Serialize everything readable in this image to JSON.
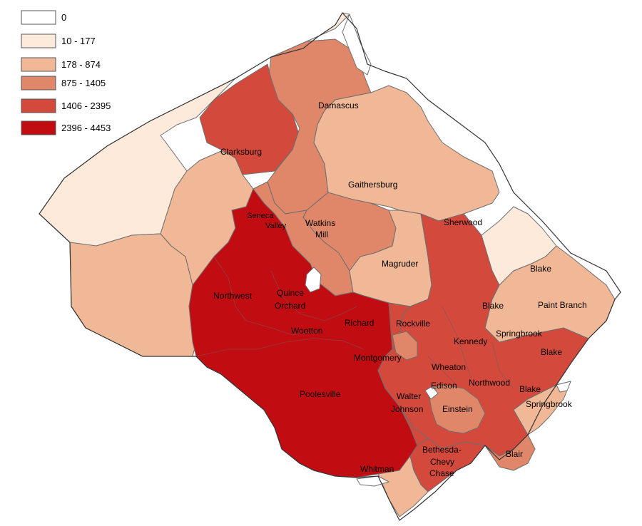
{
  "legend": {
    "classes": [
      {
        "label": "0",
        "color": "#ffffff"
      },
      {
        "label": "10 - 177",
        "color": "#fdeadb"
      },
      {
        "label": "178 - 874",
        "color": "#f0b896"
      },
      {
        "label": "875 - 1405",
        "color": "#e0876a"
      },
      {
        "label": "1406 - 2395",
        "color": "#d34a3d"
      },
      {
        "label": "2396 - 4453",
        "color": "#c10d12"
      }
    ]
  },
  "regions": [
    {
      "class_index": 1
    },
    {
      "class_index": 2
    },
    {
      "class_index": 3
    },
    {
      "class_index": 2
    },
    {
      "class_index": 4
    },
    {
      "class_index": 2
    },
    {
      "class_index": 3
    },
    {
      "class_index": 3
    },
    {
      "class_index": 2
    },
    {
      "class_index": 5
    },
    {
      "class_index": 4
    },
    {
      "class_index": 1
    },
    {
      "class_index": 2
    },
    {
      "class_index": 4
    },
    {
      "class_index": 4
    },
    {
      "class_index": 3
    },
    {
      "class_index": 3
    },
    {
      "class_index": 2
    },
    {
      "class_index": 2
    },
    {
      "class_index": 3
    },
    {
      "class_index": 0
    },
    {
      "class_index": 0
    },
    {
      "class_index": 0
    },
    {
      "class_index": 0
    },
    {
      "class_index": 0
    }
  ],
  "labels": {
    "damascus": "Damascus",
    "clarksburg": "Clarksburg",
    "gaithersburg": "Gaithersburg",
    "seneca": "Seneca",
    "valley": "Valley",
    "watkins": "Watkins",
    "mill": "Mill",
    "sherwood": "Sherwood",
    "magruder": "Magruder",
    "blake1": "Blake",
    "northwest": "Northwest",
    "quince": "Quince",
    "orchard": "Orchard",
    "blake2": "Blake",
    "paint_branch": "Paint Branch",
    "richard": "Richard",
    "rockville": "Rockville",
    "wootton": "Wootton",
    "springbrook1": "Springbrook",
    "kennedy": "Kennedy",
    "blake3": "Blake",
    "montgomery": "Montgomery",
    "wheaton": "Wheaton",
    "northwood": "Northwood",
    "edison": "Edison",
    "blake4": "Blake",
    "poolesville": "Poolesville",
    "walter": "Walter",
    "johnson": "Johnson",
    "einstein": "Einstein",
    "springbrook2": "Springbrook",
    "bethesda": "Bethesda-",
    "chevy": "Chevy",
    "chase": "Chase",
    "blair": "Blair",
    "whitman": "Whitman"
  }
}
